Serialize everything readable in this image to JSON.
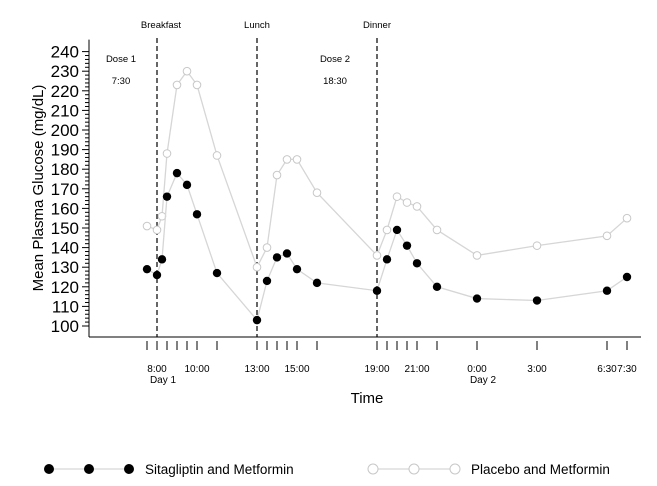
{
  "chart_data": {
    "type": "line",
    "title": "",
    "xlabel": "Time",
    "ylabel": "Mean Plasma Glucose (mg/dL)",
    "ylim": [
      100,
      240
    ],
    "y_ticks": [
      100,
      110,
      120,
      130,
      140,
      150,
      160,
      170,
      180,
      190,
      200,
      210,
      220,
      230,
      240
    ],
    "x_unit": "hours from midnight of Day 1",
    "xlim": [
      7.5,
      31.5
    ],
    "x_tick_positions": [
      7.5,
      8,
      8.5,
      9,
      9.5,
      10,
      11,
      13,
      13.5,
      14,
      14.5,
      15,
      16,
      19,
      19.5,
      20,
      20.5,
      21,
      22,
      24,
      27,
      30.5,
      31.5
    ],
    "x_tick_labels": [
      {
        "t": 8,
        "label": "8:00"
      },
      {
        "t": 10,
        "label": "10:00"
      },
      {
        "t": 13,
        "label": "13:00"
      },
      {
        "t": 15,
        "label": "15:00"
      },
      {
        "t": 19,
        "label": "19:00"
      },
      {
        "t": 21,
        "label": "21:00"
      },
      {
        "t": 24,
        "label": "0:00"
      },
      {
        "t": 27,
        "label": "3:00"
      },
      {
        "t": 30.5,
        "label": "6:30"
      },
      {
        "t": 31.5,
        "label": "7:30"
      }
    ],
    "day_labels": [
      {
        "t": 8,
        "label": "Day 1"
      },
      {
        "t": 24,
        "label": "Day 2"
      }
    ],
    "events": [
      {
        "t": 8,
        "label": "Breakfast"
      },
      {
        "t": 13,
        "label": "Lunch"
      },
      {
        "t": 19,
        "label": "Dinner"
      }
    ],
    "annotations": [
      {
        "t": 7.5,
        "title": "Dose 1",
        "time": "7:30"
      },
      {
        "t": 18.5,
        "title": "Dose 2",
        "time": "18:30"
      }
    ],
    "grid": false,
    "legend_position": "bottom",
    "series": [
      {
        "name": "Sitagliptin and Metformin",
        "color": "#000000",
        "marker": "filled-circle",
        "x": [
          7.5,
          8,
          8.25,
          8.5,
          9,
          9.5,
          10,
          11,
          13,
          13.5,
          14,
          14.5,
          15,
          16,
          19,
          19.5,
          20,
          20.5,
          21,
          22,
          24,
          27,
          30.5,
          31.5
        ],
        "values": [
          129,
          126,
          134,
          166,
          178,
          172,
          157,
          127,
          103,
          123,
          135,
          137,
          129,
          122,
          118,
          134,
          149,
          141,
          132,
          120,
          114,
          113,
          118,
          125
        ]
      },
      {
        "name": "Placebo and Metformin",
        "color": "#c8c8c8",
        "marker": "open-circle",
        "x": [
          7.5,
          8,
          8.25,
          8.5,
          9,
          9.5,
          10,
          11,
          13,
          13.5,
          14,
          14.5,
          15,
          16,
          19,
          19.5,
          20,
          20.5,
          21,
          22,
          24,
          27,
          30.5,
          31.5
        ],
        "values": [
          151,
          149,
          156,
          188,
          223,
          230,
          223,
          187,
          130,
          140,
          177,
          185,
          185,
          168,
          136,
          149,
          166,
          163,
          161,
          149,
          136,
          141,
          146,
          155
        ]
      }
    ]
  }
}
